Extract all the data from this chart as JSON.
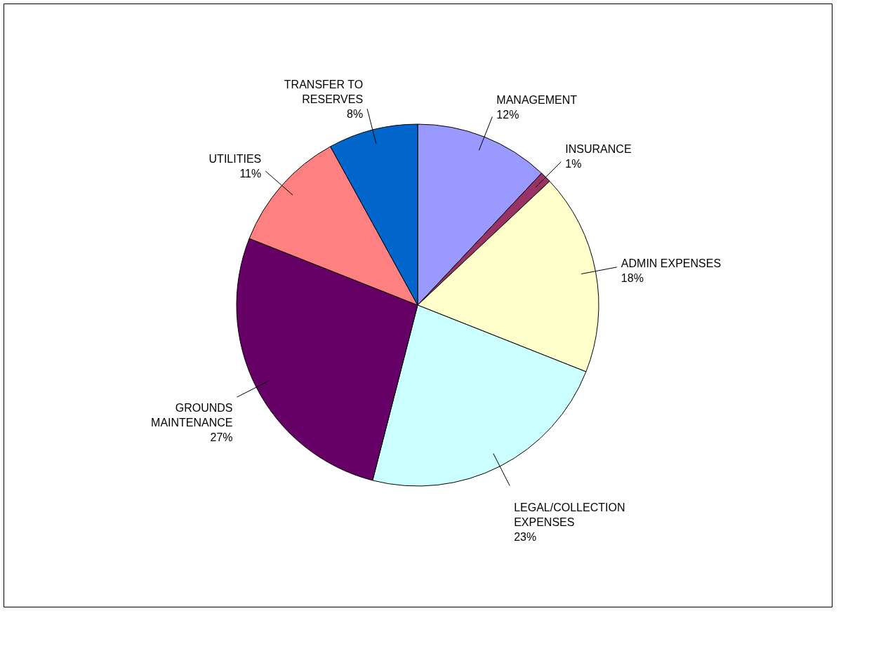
{
  "chart_data": {
    "type": "pie",
    "categories": [
      "MANAGEMENT",
      "INSURANCE",
      "ADMIN EXPENSES",
      "LEGAL/COLLECTION EXPENSES",
      "GROUNDS MAINTENANCE",
      "UTILITIES",
      "TRANSFER TO RESERVES"
    ],
    "values": [
      12,
      1,
      18,
      23,
      27,
      11,
      8
    ],
    "colors": [
      "#9999ff",
      "#993366",
      "#ffffcc",
      "#ccffff",
      "#660066",
      "#ff8080",
      "#0066cc"
    ],
    "value_labels": [
      "12%",
      "1%",
      "18%",
      "23%",
      "27%",
      "11%",
      "8%"
    ]
  }
}
